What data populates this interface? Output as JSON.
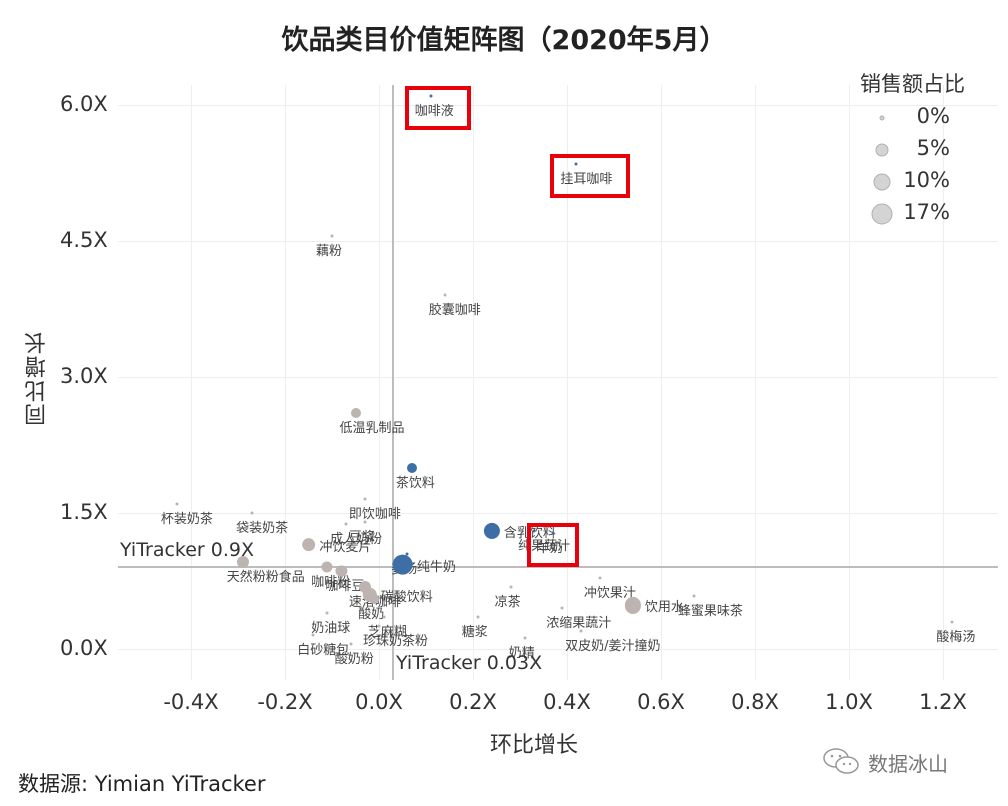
{
  "title": "饮品类目价值矩阵图（2020年5月）",
  "source": "数据源: Yimian YiTracker",
  "watermark": {
    "icon": "wechat-icon",
    "text": "数据冰山"
  },
  "legend": {
    "title": "销售额占比",
    "items": [
      {
        "label": "0%",
        "size": 3
      },
      {
        "label": "5%",
        "size": 11
      },
      {
        "label": "10%",
        "size": 15
      },
      {
        "label": "17%",
        "size": 19
      }
    ]
  },
  "reference_lines": {
    "x_label": "YiTracker 0.03X",
    "y_label": "YiTracker 0.9X"
  },
  "colors": {
    "blue": "#3d6fa6",
    "gray": "#bdb3b0",
    "highlight": "#e8000b"
  },
  "chart_data": {
    "type": "scatter",
    "title": "饮品类目价值矩阵图（2020年5月）",
    "xlabel": "环比增长",
    "ylabel": "同比增长",
    "xlim": [
      -0.55,
      1.3
    ],
    "ylim": [
      -0.3,
      6.3
    ],
    "x_ticks": [
      "-0.4X",
      "-0.2X",
      "0.0X",
      "0.2X",
      "0.4X",
      "0.6X",
      "0.8X",
      "1.0X",
      "1.2X"
    ],
    "y_ticks": [
      "0.0X",
      "1.5X",
      "3.0X",
      "4.5X",
      "6.0X"
    ],
    "reference_x": 0.03,
    "reference_y": 0.9,
    "size_legend": "销售额占比",
    "points": [
      {
        "name": "咖啡液",
        "x": 0.11,
        "y": 6.1,
        "size": 0.1,
        "color": "blue",
        "highlight": true
      },
      {
        "name": "挂耳咖啡",
        "x": 0.42,
        "y": 5.35,
        "size": 0.1,
        "color": "blue",
        "highlight": true
      },
      {
        "name": "藕粉",
        "x": -0.1,
        "y": 4.55,
        "size": 0.1,
        "color": "gray",
        "highlight": false
      },
      {
        "name": "胶囊咖啡",
        "x": 0.14,
        "y": 3.9,
        "size": 0.1,
        "color": "gray",
        "highlight": false
      },
      {
        "name": "低温乳制品",
        "x": -0.05,
        "y": 2.6,
        "size": 1.0,
        "color": "gray",
        "highlight": false
      },
      {
        "name": "茶饮料",
        "x": 0.07,
        "y": 2.0,
        "size": 1.0,
        "color": "blue",
        "highlight": false
      },
      {
        "name": "即饮咖啡",
        "x": -0.03,
        "y": 1.65,
        "size": 0.1,
        "color": "gray",
        "highlight": false
      },
      {
        "name": "杯装奶茶",
        "x": -0.43,
        "y": 1.6,
        "size": 0.1,
        "color": "gray",
        "highlight": false
      },
      {
        "name": "袋装奶茶",
        "x": -0.27,
        "y": 1.5,
        "size": 0.1,
        "color": "gray",
        "highlight": false
      },
      {
        "name": "豆浆",
        "x": -0.03,
        "y": 1.4,
        "size": 0.1,
        "color": "gray",
        "highlight": false
      },
      {
        "name": "成人奶粉",
        "x": -0.07,
        "y": 1.38,
        "size": 0.1,
        "color": "gray",
        "highlight": false
      },
      {
        "name": "纯果蔬汁",
        "x": 0.33,
        "y": 1.3,
        "size": 0.3,
        "color": "blue",
        "highlight": false
      },
      {
        "name": "含乳饮料",
        "x": 0.24,
        "y": 1.3,
        "size": 5.0,
        "color": "blue",
        "highlight": false
      },
      {
        "name": "羊奶",
        "x": 0.37,
        "y": 1.28,
        "size": 0.1,
        "color": "blue",
        "highlight": true
      },
      {
        "name": "冲饮麦片",
        "x": -0.15,
        "y": 1.15,
        "size": 3.0,
        "color": "gray",
        "highlight": false
      },
      {
        "name": "姜汤",
        "x": 0.06,
        "y": 1.05,
        "size": 0.3,
        "color": "blue",
        "highlight": false
      },
      {
        "name": "纯牛奶",
        "x": 0.05,
        "y": 0.93,
        "size": 10.0,
        "color": "blue",
        "highlight": false
      },
      {
        "name": "天然粉粉食品",
        "x": -0.29,
        "y": 0.96,
        "size": 2.0,
        "color": "gray",
        "highlight": false
      },
      {
        "name": "咖啡粉",
        "x": -0.11,
        "y": 0.9,
        "size": 1.5,
        "color": "gray",
        "highlight": false
      },
      {
        "name": "咖啡豆",
        "x": -0.08,
        "y": 0.86,
        "size": 1.5,
        "color": "gray",
        "highlight": false
      },
      {
        "name": "速溶咖啡",
        "x": -0.03,
        "y": 0.68,
        "size": 2.0,
        "color": "gray",
        "highlight": false
      },
      {
        "name": "碳酸饮料",
        "x": -0.02,
        "y": 0.6,
        "size": 3.5,
        "color": "gray",
        "highlight": false
      },
      {
        "name": "酸奶",
        "x": -0.01,
        "y": 0.55,
        "size": 1.0,
        "color": "gray",
        "highlight": false
      },
      {
        "name": "奶油球",
        "x": -0.11,
        "y": 0.4,
        "size": 0.1,
        "color": "gray",
        "highlight": false
      },
      {
        "name": "芝麻糊",
        "x": 0.01,
        "y": 0.35,
        "size": 0.1,
        "color": "gray",
        "highlight": false
      },
      {
        "name": "白砂糖包",
        "x": -0.14,
        "y": 0.15,
        "size": 0.1,
        "color": "gray",
        "highlight": false
      },
      {
        "name": "珍珠奶茶粉",
        "x": 0.0,
        "y": 0.25,
        "size": 0.1,
        "color": "gray",
        "highlight": false
      },
      {
        "name": "酸奶粉",
        "x": -0.06,
        "y": 0.05,
        "size": 0.1,
        "color": "gray",
        "highlight": false
      },
      {
        "name": "凉茶",
        "x": 0.28,
        "y": 0.68,
        "size": 0.1,
        "color": "gray",
        "highlight": false
      },
      {
        "name": "冲饮果汁",
        "x": 0.47,
        "y": 0.78,
        "size": 0.1,
        "color": "gray",
        "highlight": false
      },
      {
        "name": "蜂蜜果味茶",
        "x": 0.67,
        "y": 0.58,
        "size": 0.1,
        "color": "gray",
        "highlight": false
      },
      {
        "name": "酸梅汤",
        "x": 1.22,
        "y": 0.3,
        "size": 0.1,
        "color": "gray",
        "highlight": false
      },
      {
        "name": "浓缩果蔬汁",
        "x": 0.39,
        "y": 0.45,
        "size": 0.1,
        "color": "gray",
        "highlight": false
      },
      {
        "name": "饮用水",
        "x": 0.54,
        "y": 0.48,
        "size": 5.0,
        "color": "gray",
        "highlight": false
      },
      {
        "name": "糖浆",
        "x": 0.21,
        "y": 0.35,
        "size": 0.1,
        "color": "gray",
        "highlight": false
      },
      {
        "name": "奶精",
        "x": 0.31,
        "y": 0.12,
        "size": 0.1,
        "color": "gray",
        "highlight": false
      },
      {
        "name": "双皮奶/姜汁撞奶",
        "x": 0.43,
        "y": 0.2,
        "size": 0.1,
        "color": "gray",
        "highlight": false
      }
    ]
  }
}
